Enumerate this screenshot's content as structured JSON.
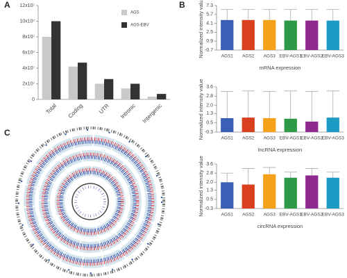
{
  "chart_data": [
    {
      "type": "bar",
      "panel_label": "A",
      "categories": [
        "Total",
        "Coding",
        "UTR",
        "Intronic",
        "Intergenic"
      ],
      "series": [
        {
          "name": "AGS",
          "color": "#c9c9c9",
          "values": [
            80000000,
            42000000,
            20000000,
            14000000,
            3500000
          ]
        },
        {
          "name": "AGS-EBV",
          "color": "#333333",
          "values": [
            100000000,
            47000000,
            26000000,
            20000000,
            7000000
          ]
        }
      ],
      "ylim": [
        0,
        120000000
      ],
      "yticks": [
        0,
        {
          "value": 20000000,
          "label": "2x10⁷"
        },
        {
          "value": 40000000,
          "label": "4x10⁷"
        },
        {
          "value": 60000000,
          "label": "6x10⁷"
        },
        {
          "value": 80000000,
          "label": "8x10⁷"
        },
        {
          "value": 100000000,
          "label": "10x10⁷"
        },
        {
          "value": 120000000,
          "label": "12x10⁷"
        }
      ],
      "legend": "upper right",
      "grid": false
    },
    {
      "type": "bar",
      "panel_label": "B",
      "ylabel": "Normalized intensity value",
      "xlabel": "mRNA expression",
      "categories": [
        "AGS1",
        "AGS2",
        "AGS3",
        "EBV-AGS1",
        "EBV-AGS2",
        "EBV-AGS3"
      ],
      "values": [
        4.7,
        4.7,
        4.7,
        4.6,
        4.6,
        4.6
      ],
      "errors": [
        1.9,
        1.9,
        1.9,
        2.0,
        2.0,
        2.0
      ],
      "colors": [
        "#3a5fb5",
        "#d9401f",
        "#f5a21b",
        "#2e9a47",
        "#8e2a8e",
        "#1c9bc4"
      ],
      "ylim": [
        -0.7,
        7.3
      ],
      "yticks": [
        -0.7,
        0.9,
        2.5,
        4.1,
        5.7,
        7.3
      ],
      "grid": false
    },
    {
      "type": "bar",
      "ylabel": "Normalized intensity value",
      "xlabel": "lncRNA expression",
      "categories": [
        "AGS1",
        "AGS2",
        "AGS3",
        "EBV-AGS1",
        "EBV-AGS2",
        "EBV-AGS3"
      ],
      "values": [
        0.9,
        0.95,
        0.9,
        0.85,
        0.6,
        0.95
      ],
      "errors": [
        2.3,
        2.3,
        2.3,
        2.4,
        2.6,
        2.3
      ],
      "colors": [
        "#3a5fb5",
        "#d9401f",
        "#f5a21b",
        "#2e9a47",
        "#8e2a8e",
        "#1c9bc4"
      ],
      "ylim": [
        -0.3,
        3.6
      ],
      "yticks": [
        -0.3,
        0.5,
        1.3,
        {
          "value": 2,
          "label": "2.0"
        },
        2.8,
        3.6
      ],
      "grid": false
    },
    {
      "type": "bar",
      "ylabel": "Normalized intensity value",
      "xlabel": "circRNA expression",
      "categories": [
        "AGS1",
        "AGS2",
        "AGS3",
        "EBV-AGS1",
        "EBV-AGS2",
        "EBV-AGS3"
      ],
      "values": [
        2.0,
        1.8,
        2.7,
        2.4,
        2.6,
        2.4
      ],
      "errors": [
        0.8,
        1.4,
        0.6,
        0.5,
        0.6,
        0.5
      ],
      "colors": [
        "#3a5fb5",
        "#d9401f",
        "#f5a21b",
        "#2e9a47",
        "#8e2a8e",
        "#1c9bc4"
      ],
      "ylim": [
        -0.3,
        3.6
      ],
      "yticks": [
        -0.3,
        0.5,
        1.3,
        {
          "value": 2,
          "label": "2.0"
        },
        2.8,
        3.6
      ],
      "grid": false
    },
    {
      "type": "circos",
      "panel_label": "C"
    }
  ]
}
